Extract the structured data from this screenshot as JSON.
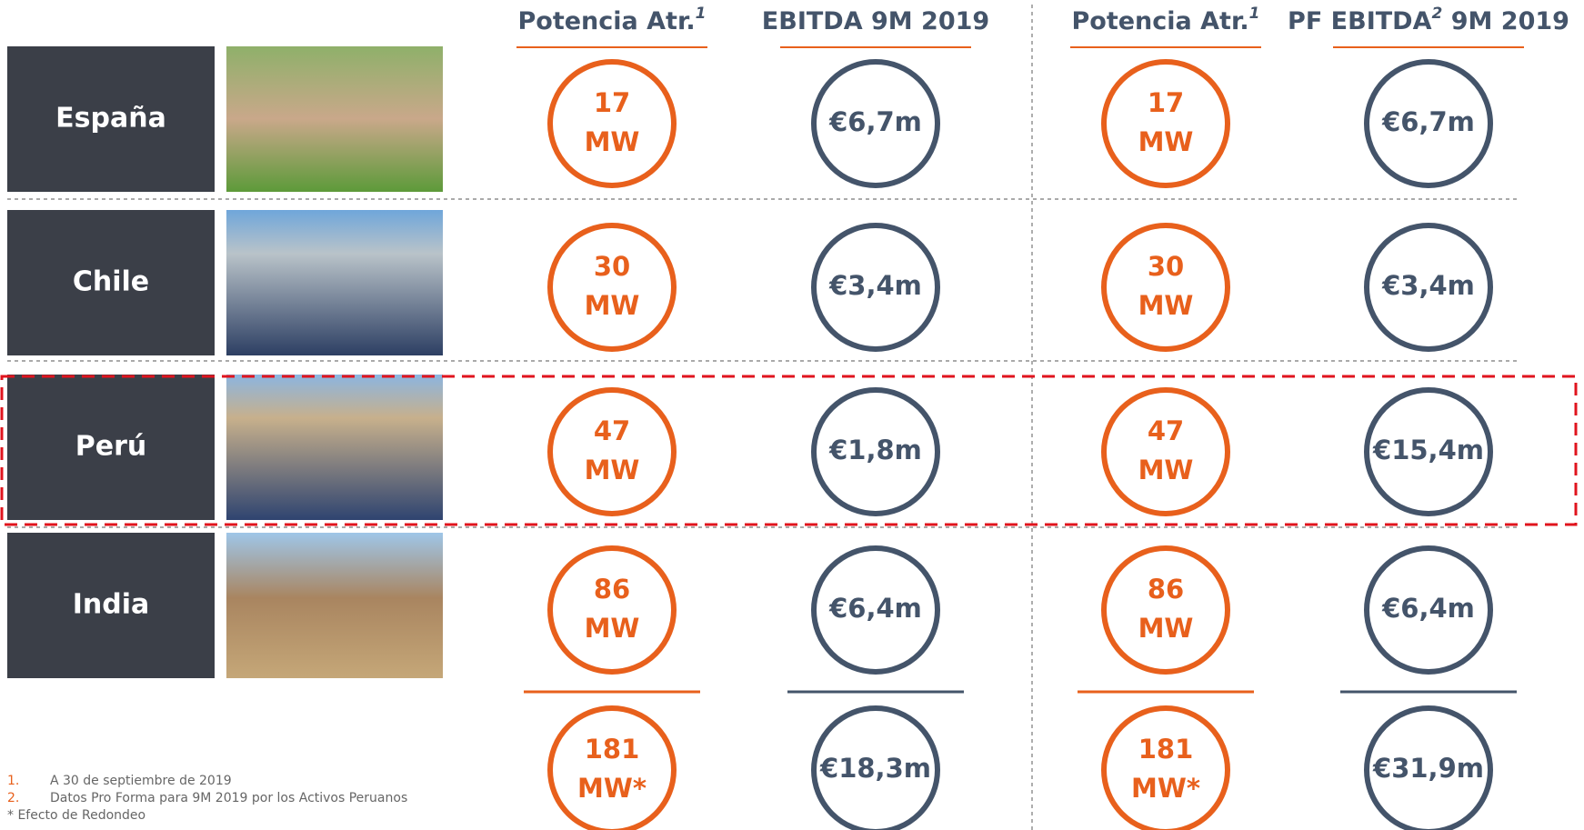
{
  "headers": [
    {
      "text": "Potencia Atr.",
      "sup": "1"
    },
    {
      "text": "EBITDA 9M 2019"
    },
    {
      "text": "Potencia Atr.",
      "sup": "1"
    },
    {
      "text": "PF EBITDA",
      "sup": "2",
      "after": " 9M 2019"
    }
  ],
  "rows": [
    {
      "country": "España",
      "cells": [
        [
          "17",
          "MW"
        ],
        [
          "€6,7m"
        ],
        [
          "17",
          "MW"
        ],
        [
          "€6,7m"
        ]
      ]
    },
    {
      "country": "Chile",
      "cells": [
        [
          "30",
          "MW"
        ],
        [
          "€3,4m"
        ],
        [
          "30",
          "MW"
        ],
        [
          "€3,4m"
        ]
      ]
    },
    {
      "country": "Perú",
      "cells": [
        [
          "47",
          "MW"
        ],
        [
          "€1,8m"
        ],
        [
          "47",
          "MW"
        ],
        [
          "€15,4m"
        ]
      ]
    },
    {
      "country": "India",
      "cells": [
        [
          "86",
          "MW"
        ],
        [
          "€6,4m"
        ],
        [
          "86",
          "MW"
        ],
        [
          "€6,4m"
        ]
      ]
    }
  ],
  "totals": [
    [
      "181",
      "MW*"
    ],
    [
      "€18,3m"
    ],
    [
      "181",
      "MW*"
    ],
    [
      "€31,9m"
    ]
  ],
  "footnotes": [
    {
      "num": "1.",
      "text": "A 30 de septiembre de 2019"
    },
    {
      "num": "2.",
      "text": "Datos Pro Forma para 9M 2019 por los Activos Peruanos"
    },
    {
      "text": "* Efecto de Redondeo"
    }
  ]
}
